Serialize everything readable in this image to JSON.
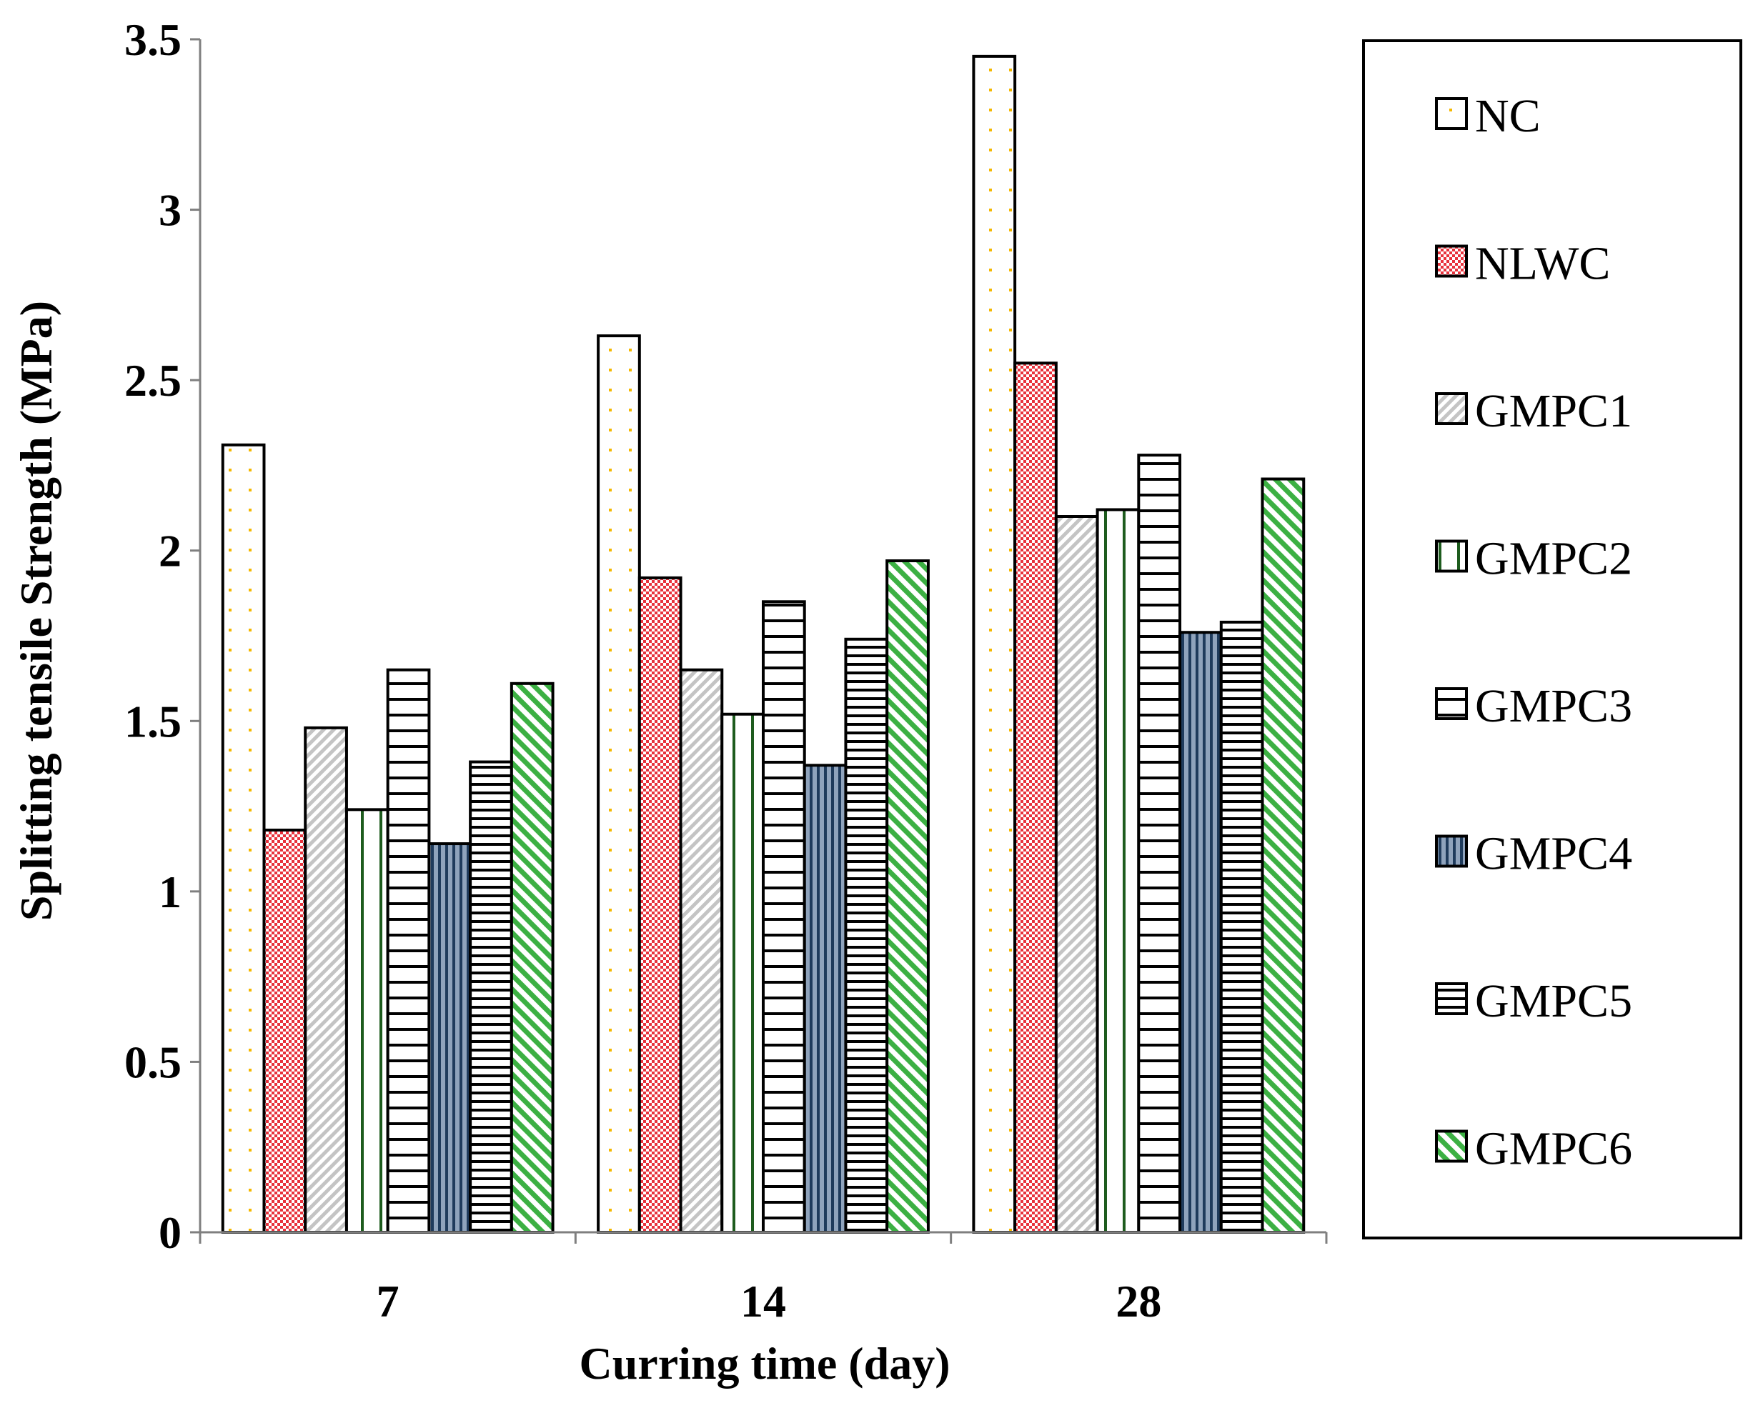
{
  "chart_data": {
    "type": "bar",
    "title": "",
    "xlabel": "Curring time (day)",
    "ylabel": "Splitting tensile Strength (MPa)",
    "categories": [
      "7",
      "14",
      "28"
    ],
    "ylim": [
      0,
      3.5
    ],
    "yticks": [
      0,
      0.5,
      1,
      1.5,
      2,
      2.5,
      3,
      3.5
    ],
    "ytick_labels": [
      "0",
      "0.5",
      "1",
      "1.5",
      "2",
      "2.5",
      "3",
      "3.5"
    ],
    "grid": false,
    "legend_position": "right",
    "series": [
      {
        "name": "NC",
        "values": [
          2.31,
          2.63,
          3.45
        ],
        "pattern": "dots-orange",
        "color": "#FFFFFF",
        "accent": "#F5B800"
      },
      {
        "name": "NLWC",
        "values": [
          1.18,
          1.92,
          2.55
        ],
        "pattern": "checker-red",
        "color": "#E8323C",
        "accent": "#FFFFFF"
      },
      {
        "name": "GMPC1",
        "values": [
          1.48,
          1.65,
          2.1
        ],
        "pattern": "diagonal-gray",
        "color": "#FFFFFF",
        "accent": "#BDBDBD"
      },
      {
        "name": "GMPC2",
        "values": [
          1.24,
          1.52,
          2.12
        ],
        "pattern": "vertical-green",
        "color": "#FFFFFF",
        "accent": "#1E5C1E"
      },
      {
        "name": "GMPC3",
        "values": [
          1.65,
          1.85,
          2.28
        ],
        "pattern": "horizontal-wide",
        "color": "#FFFFFF",
        "accent": "#000000"
      },
      {
        "name": "GMPC4",
        "values": [
          1.14,
          1.37,
          1.76
        ],
        "pattern": "vertical-blue",
        "color": "#8FA3BC",
        "accent": "#1F3B5C"
      },
      {
        "name": "GMPC5",
        "values": [
          1.38,
          1.74,
          1.79
        ],
        "pattern": "horizontal-narrow",
        "color": "#FFFFFF",
        "accent": "#000000"
      },
      {
        "name": "GMPC6",
        "values": [
          1.61,
          1.97,
          2.21
        ],
        "pattern": "diagonal-green",
        "color": "#FFFFFF",
        "accent": "#3CB043"
      }
    ]
  }
}
